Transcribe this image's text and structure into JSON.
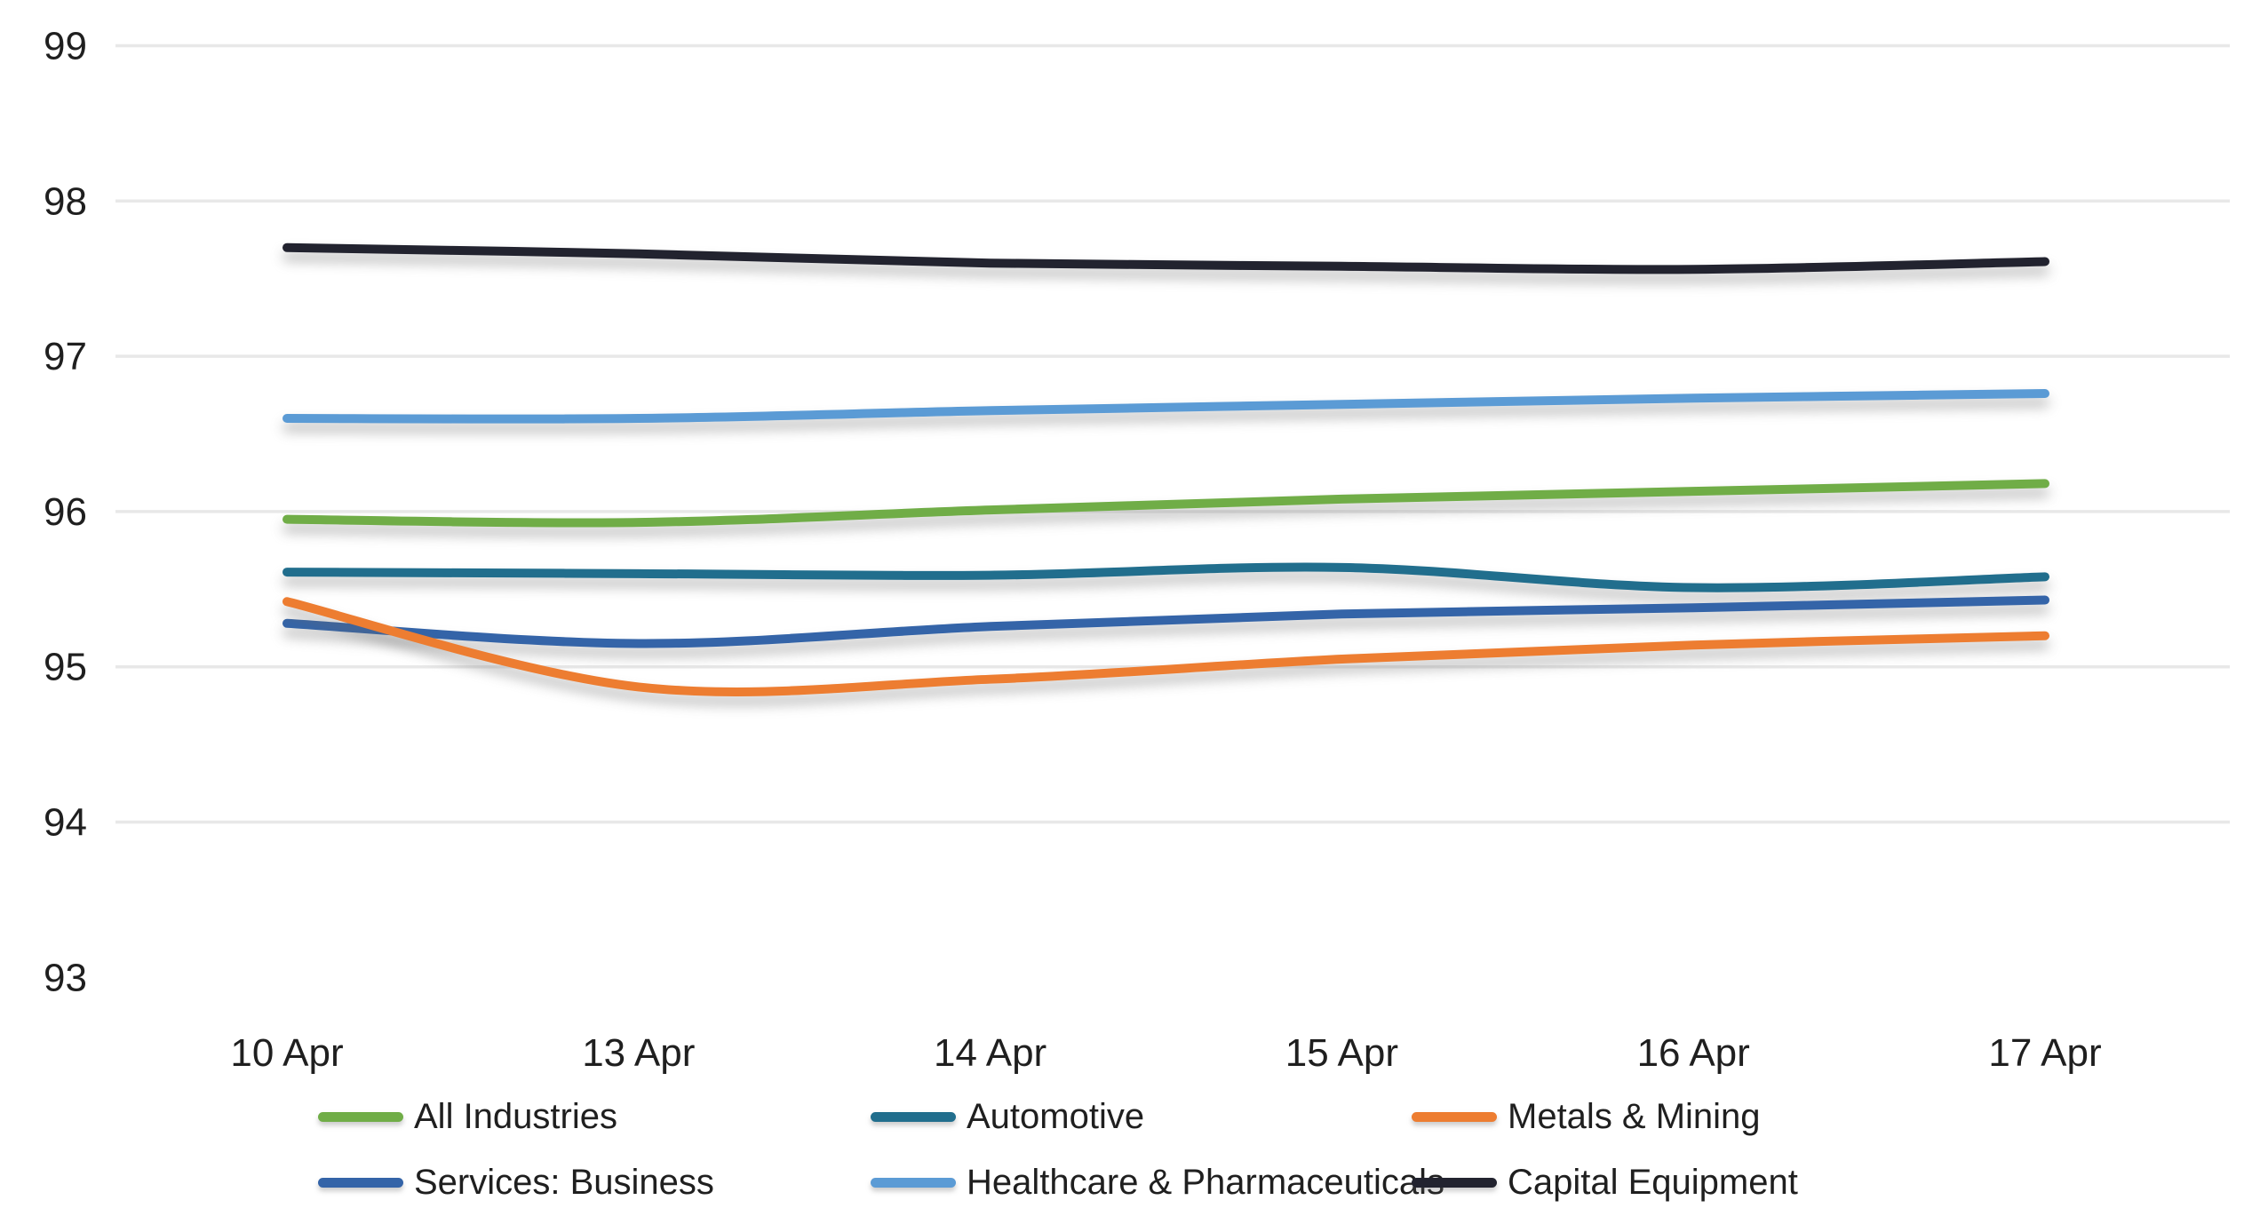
{
  "chart_data": {
    "type": "line",
    "smoothed": true,
    "title": "",
    "xlabel": "",
    "ylabel": "",
    "categories": [
      "10 Apr",
      "13 Apr",
      "14 Apr",
      "15 Apr",
      "16 Apr",
      "17 Apr"
    ],
    "series": [
      {
        "name": "All Industries",
        "color": "#70AD47",
        "values": [
          95.95,
          95.93,
          96.01,
          96.08,
          96.13,
          96.18
        ]
      },
      {
        "name": "Automotive",
        "color": "#216E8D",
        "values": [
          95.61,
          95.6,
          95.59,
          95.64,
          95.51,
          95.58
        ]
      },
      {
        "name": "Metals & Mining",
        "color": "#ED7D31",
        "values": [
          95.42,
          94.87,
          94.92,
          95.05,
          95.14,
          95.2
        ]
      },
      {
        "name": "Services: Business",
        "color": "#3464A8",
        "values": [
          95.28,
          95.15,
          95.26,
          95.34,
          95.38,
          95.43
        ]
      },
      {
        "name": "Healthcare & Pharmaceuticals",
        "color": "#5B9BD5",
        "values": [
          96.6,
          96.6,
          96.65,
          96.69,
          96.73,
          96.76
        ]
      },
      {
        "name": "Capital Equipment",
        "color": "#22232F",
        "values": [
          97.7,
          97.66,
          97.6,
          97.58,
          97.56,
          97.61
        ]
      }
    ],
    "ylim": [
      93,
      99
    ],
    "yticks": [
      99,
      98,
      97,
      96,
      95,
      94,
      93
    ],
    "gridline_ticks": [
      99,
      98,
      97,
      96,
      95,
      94
    ],
    "grid": "horizontal",
    "legend_position": "bottom",
    "colors": {
      "background": "#FFFFFF",
      "gridline": "#E8E8E8",
      "axis_text": "#1F1F1F"
    }
  }
}
